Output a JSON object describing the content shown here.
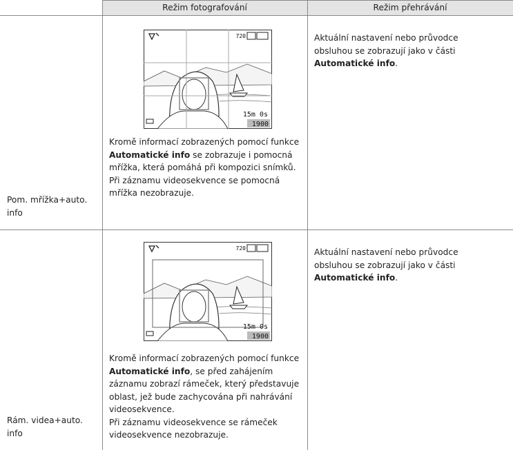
{
  "table": {
    "header": [
      "Režim fotografování",
      "Režim přehrávání"
    ],
    "rows": [
      {
        "label": "Pom. mřížka+auto. info",
        "screen": {
          "resolution": "720",
          "time": "15m 0s",
          "count": "1900"
        },
        "photo_text": {
          "before": "Kromě informací zobrazených pomocí funkce ",
          "bold": "Automatické info",
          "after": " se zobrazuje i pomocná mřížka, která pomáhá při kompozici snímků."
        },
        "photo_note": "Při záznamu videosekvence se pomocná mřížka nezobrazuje.",
        "playback_text": {
          "before": "Aktuální nastavení nebo průvodce obsluhou se zobrazují jako v části ",
          "bold": "Automatické info",
          "after": "."
        }
      },
      {
        "label": "Rám. videa+auto. info",
        "screen": {
          "resolution": "720",
          "time": "15m 0s",
          "count": "1900"
        },
        "photo_text": {
          "before": "Kromě informací zobrazených pomocí funkce ",
          "bold": "Automatické info",
          "after": ", se před zahájením záznamu zobrazí rámeček, který představuje oblast, jež bude zachycována při nahrávání videosekvence."
        },
        "photo_note": "Při záznamu videosekvence se rámeček videosekvence nezobrazuje.",
        "playback_text": {
          "before": "Aktuální nastavení nebo průvodce obsluhou se zobrazují jako v části ",
          "bold": "Automatické info",
          "after": "."
        }
      }
    ]
  }
}
